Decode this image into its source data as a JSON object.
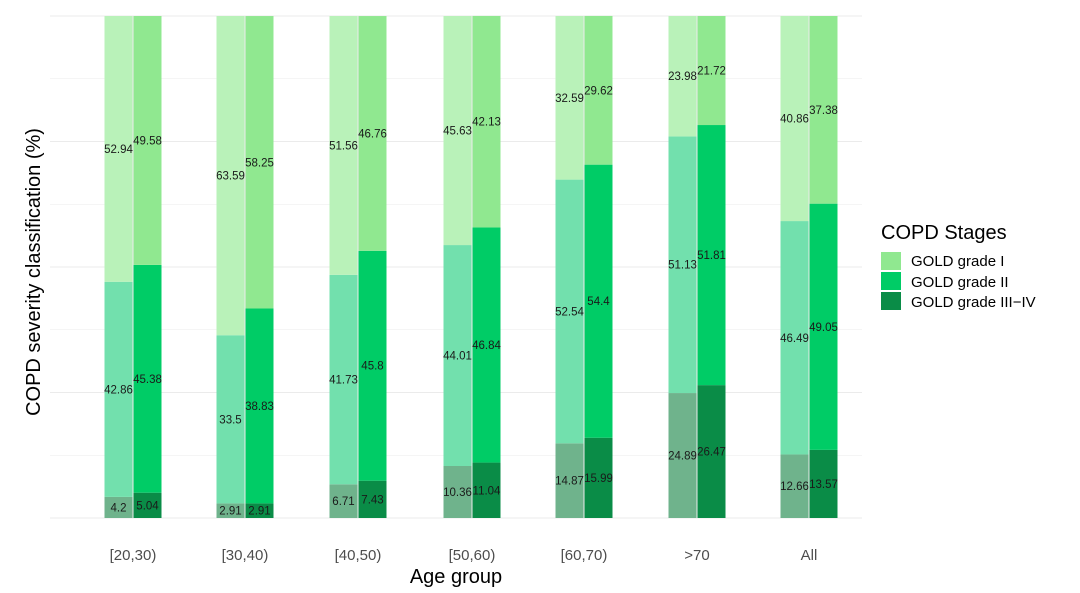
{
  "chart_data": {
    "type": "bar",
    "stacked": true,
    "normalized": true,
    "title": "",
    "xlabel": "Age group",
    "ylabel": "COPD severity classification (%)",
    "ylim": [
      0,
      100
    ],
    "grid": true,
    "legend_position": "right",
    "categories": [
      "[20,30)",
      "[30,40)",
      "[40,50)",
      "[50,60)",
      "[60,70)",
      ">70",
      "All"
    ],
    "legend": {
      "title": "COPD Stages",
      "items": [
        {
          "label": "GOLD grade I",
          "color": "#90e890"
        },
        {
          "label": "GOLD grade II",
          "color": "#00cc66"
        },
        {
          "label": "GOLD grade III−IV",
          "color": "#0a8c47"
        }
      ]
    },
    "bar_groups": [
      {
        "stack_colors": {
          "grade_I": "#b9f2b9",
          "grade_II": "#72e0ad",
          "grade_III_IV": "#6fb38c"
        },
        "values": {
          "grade_III_IV": [
            4.2,
            2.91,
            6.71,
            10.36,
            14.87,
            24.89,
            12.66
          ],
          "grade_II": [
            42.86,
            33.5,
            41.73,
            44.01,
            52.54,
            51.13,
            46.49
          ],
          "grade_I": [
            52.94,
            63.59,
            51.56,
            45.63,
            32.59,
            23.98,
            40.86
          ]
        }
      },
      {
        "stack_colors": {
          "grade_I": "#90e890",
          "grade_II": "#00cc66",
          "grade_III_IV": "#0a8c47"
        },
        "values": {
          "grade_III_IV": [
            5.04,
            2.91,
            7.43,
            11.04,
            15.99,
            26.47,
            13.57
          ],
          "grade_II": [
            45.38,
            38.83,
            45.8,
            46.84,
            54.4,
            51.81,
            49.05
          ],
          "grade_I": [
            49.58,
            58.25,
            46.76,
            42.13,
            29.62,
            21.72,
            37.38
          ]
        }
      }
    ],
    "gridline_color": "#ebebeb"
  }
}
